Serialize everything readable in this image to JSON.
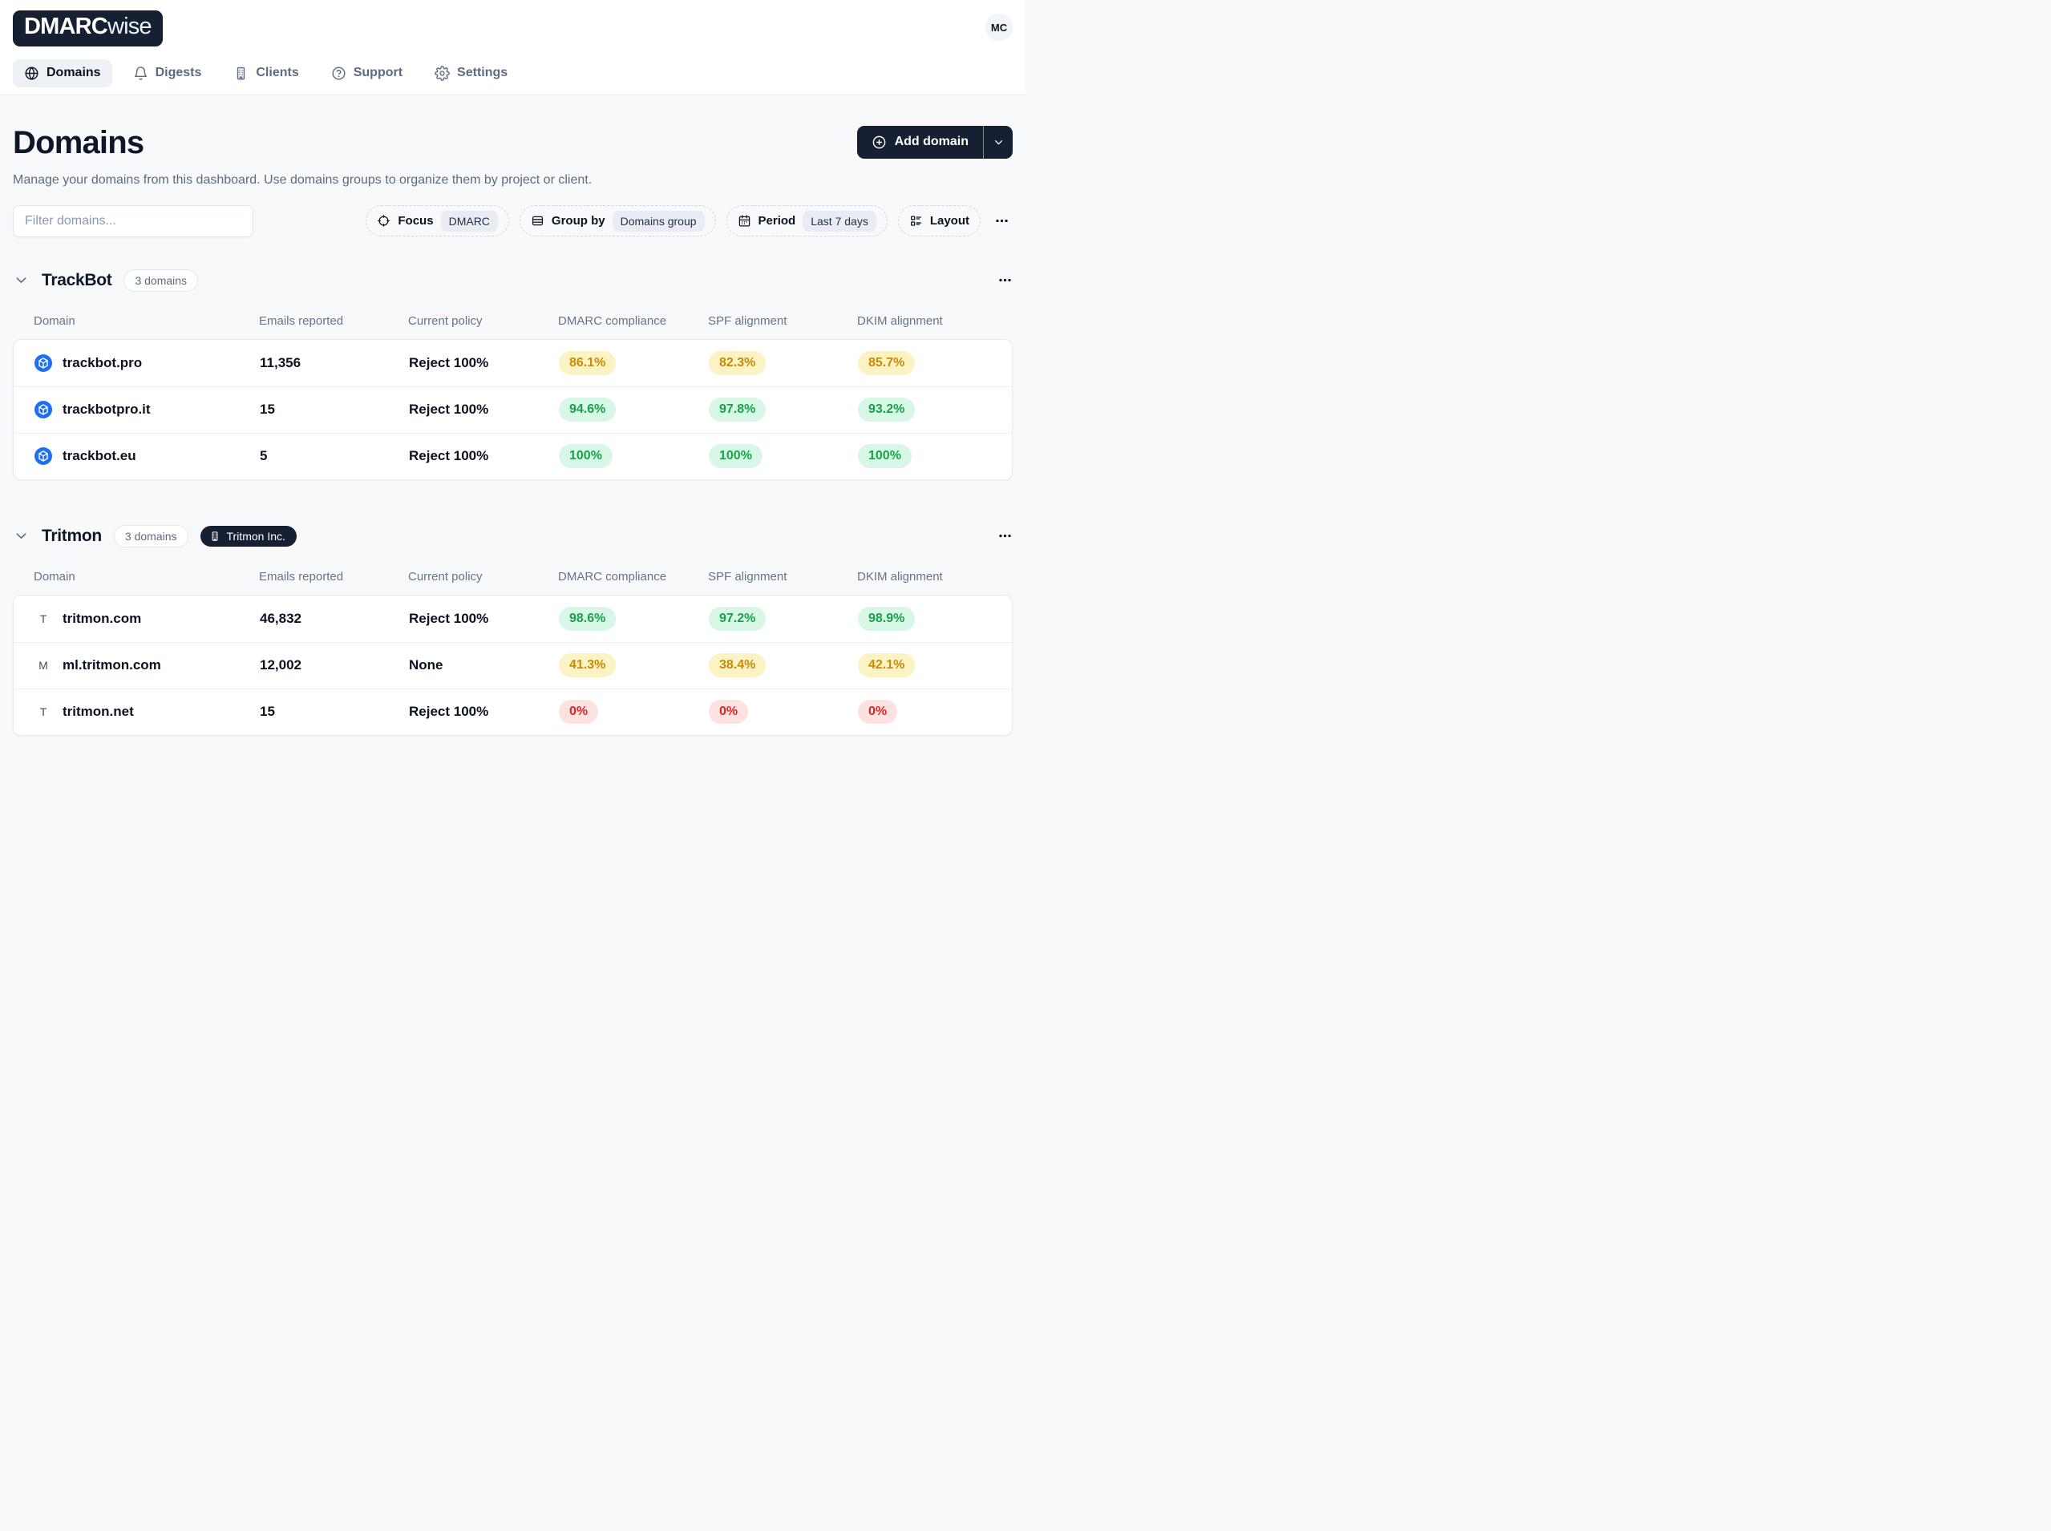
{
  "brand": {
    "bold": "DMARC",
    "light": "wise"
  },
  "avatar": "MC",
  "nav": {
    "items": [
      {
        "label": "Domains",
        "icon": "globe",
        "active": true
      },
      {
        "label": "Digests",
        "icon": "bell",
        "active": false
      },
      {
        "label": "Clients",
        "icon": "building",
        "active": false
      },
      {
        "label": "Support",
        "icon": "help",
        "active": false
      },
      {
        "label": "Settings",
        "icon": "gear",
        "active": false
      }
    ]
  },
  "page": {
    "title": "Domains",
    "subtitle": "Manage your domains from this dashboard. Use domains groups to organize them by project or client.",
    "add_button": "Add domain"
  },
  "filters": {
    "placeholder": "Filter domains...",
    "focus_label": "Focus",
    "focus_value": "DMARC",
    "group_by_label": "Group by",
    "group_by_value": "Domains group",
    "period_label": "Period",
    "period_value": "Last 7 days",
    "layout_label": "Layout"
  },
  "table": {
    "columns": [
      "Domain",
      "Emails reported",
      "Current policy",
      "DMARC compliance",
      "SPF alignment",
      "DKIM alignment"
    ]
  },
  "groups": [
    {
      "name": "TrackBot",
      "count_badge": "3 domains",
      "org_badge": null,
      "rows": [
        {
          "icon": "cube",
          "domain": "trackbot.pro",
          "emails": "11,356",
          "policy": "Reject 100%",
          "dmarc": {
            "value": "86.1%",
            "status": "warn"
          },
          "spf": {
            "value": "82.3%",
            "status": "warn"
          },
          "dkim": {
            "value": "85.7%",
            "status": "warn"
          }
        },
        {
          "icon": "cube",
          "domain": "trackbotpro.it",
          "emails": "15",
          "policy": "Reject 100%",
          "dmarc": {
            "value": "94.6%",
            "status": "good"
          },
          "spf": {
            "value": "97.8%",
            "status": "good"
          },
          "dkim": {
            "value": "93.2%",
            "status": "good"
          }
        },
        {
          "icon": "cube",
          "domain": "trackbot.eu",
          "emails": "5",
          "policy": "Reject 100%",
          "dmarc": {
            "value": "100%",
            "status": "good"
          },
          "spf": {
            "value": "100%",
            "status": "good"
          },
          "dkim": {
            "value": "100%",
            "status": "good"
          }
        }
      ]
    },
    {
      "name": "Tritmon",
      "count_badge": "3 domains",
      "org_badge": "Tritmon Inc.",
      "rows": [
        {
          "icon": "T",
          "domain": "tritmon.com",
          "emails": "46,832",
          "policy": "Reject 100%",
          "dmarc": {
            "value": "98.6%",
            "status": "good"
          },
          "spf": {
            "value": "97.2%",
            "status": "good"
          },
          "dkim": {
            "value": "98.9%",
            "status": "good"
          }
        },
        {
          "icon": "M",
          "domain": "ml.tritmon.com",
          "emails": "12,002",
          "policy": "None",
          "dmarc": {
            "value": "41.3%",
            "status": "warn"
          },
          "spf": {
            "value": "38.4%",
            "status": "warn"
          },
          "dkim": {
            "value": "42.1%",
            "status": "warn"
          }
        },
        {
          "icon": "T",
          "domain": "tritmon.net",
          "emails": "15",
          "policy": "Reject 100%",
          "dmarc": {
            "value": "0%",
            "status": "bad"
          },
          "spf": {
            "value": "0%",
            "status": "bad"
          },
          "dkim": {
            "value": "0%",
            "status": "bad"
          }
        }
      ]
    }
  ],
  "colors": {
    "accent_dark": "#162032",
    "favicon_blue": "#1f6ff5",
    "badge_warn_bg": "#fcf3c5",
    "badge_warn_text": "#ca8a04",
    "badge_good_bg": "#d9f7e6",
    "badge_good_text": "#17a34a",
    "badge_bad_bg": "#fde2e1",
    "badge_bad_text": "#dc2626"
  }
}
